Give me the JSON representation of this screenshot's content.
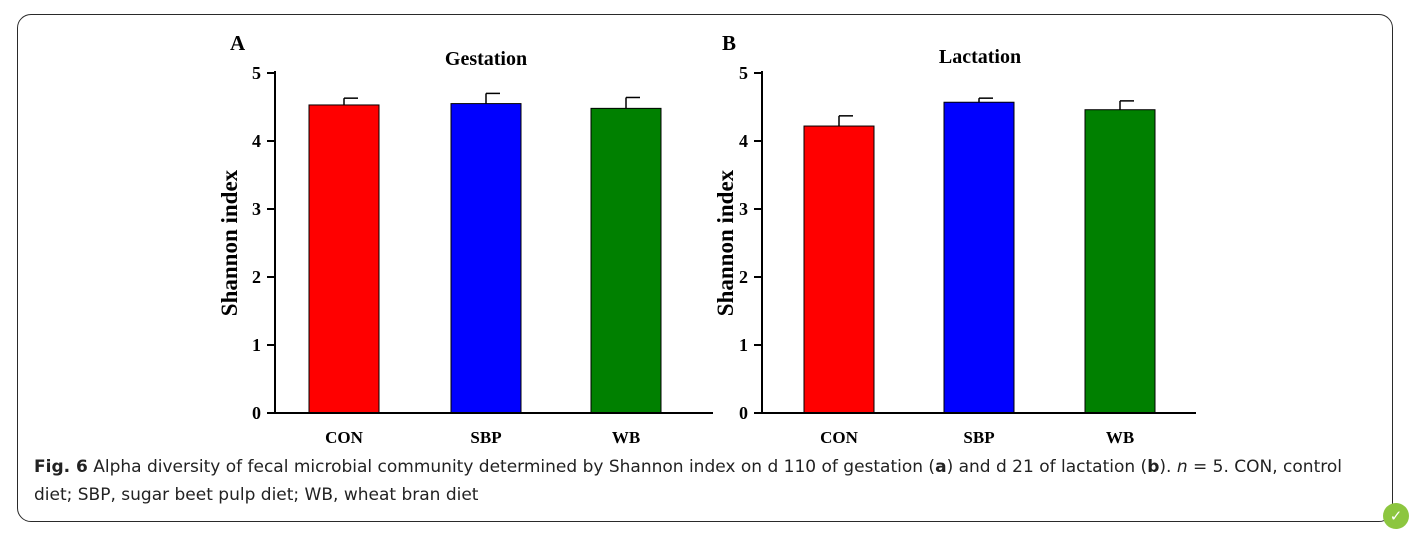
{
  "chart_data": [
    {
      "type": "bar",
      "panel_label": "A",
      "title": "Gestation",
      "xlabel": "",
      "ylabel": "Shannon index",
      "ylim": [
        0,
        5
      ],
      "yticks": [
        "0",
        "1",
        "2",
        "3",
        "4",
        "5"
      ],
      "categories": [
        "CON",
        "SBP",
        "WB"
      ],
      "values": [
        4.53,
        4.55,
        4.48
      ],
      "errors": [
        0.1,
        0.15,
        0.16
      ],
      "colors": [
        "#ff0000",
        "#0000ff",
        "#008000"
      ]
    },
    {
      "type": "bar",
      "panel_label": "B",
      "title": "Lactation",
      "xlabel": "",
      "ylabel": "Shannon index",
      "ylim": [
        0,
        5
      ],
      "yticks": [
        "0",
        "1",
        "2",
        "3",
        "4",
        "5"
      ],
      "categories": [
        "CON",
        "SBP",
        "WB"
      ],
      "values": [
        4.22,
        4.57,
        4.46
      ],
      "errors": [
        0.15,
        0.06,
        0.13
      ],
      "colors": [
        "#ff0000",
        "#0000ff",
        "#008000"
      ]
    }
  ],
  "caption": {
    "label": "Fig. 6",
    "text_1": " Alpha diversity of fecal microbial community determined by Shannon index on d 110 of gestation (",
    "ref_a": "a",
    "text_2": ") and d 21 of lactation (",
    "ref_b": "b",
    "text_3": "). ",
    "n_symbol": "n",
    "text_4": " = 5. CON, control diet; SBP, sugar beet pulp diet; WB, wheat bran diet"
  },
  "badge_icon": "checkmark-leaf-icon",
  "badge_color": "#8cc63f"
}
